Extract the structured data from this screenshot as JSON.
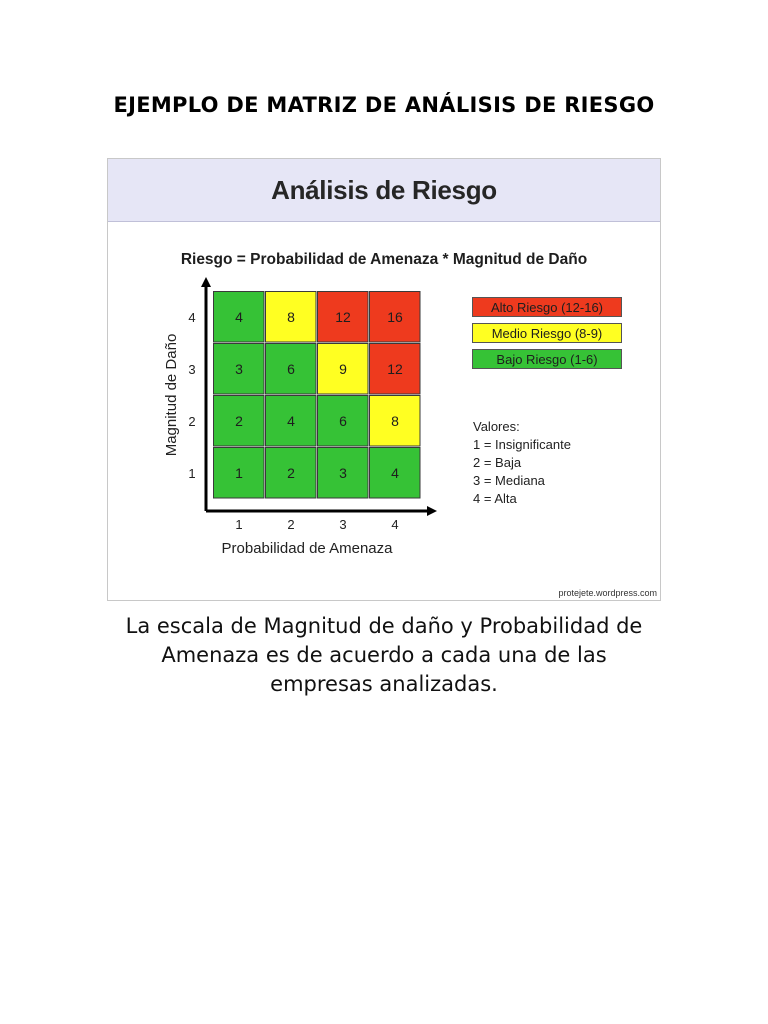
{
  "document": {
    "title": "EJEMPLO DE MATRIZ DE ANÁLISIS DE RIESGO",
    "caption": "La escala de Magnitud de daño y Probabilidad de Amenaza es de acuerdo a cada una de las empresas analizadas."
  },
  "figure": {
    "banner_title": "Análisis de Riesgo",
    "formula": "Riesgo = Probabilidad de Amenaza * Magnitud de Daño",
    "legend": [
      {
        "label": "Alto Riesgo (12-16)",
        "color": "#ee3a1e"
      },
      {
        "label": "Medio Riesgo (8-9)",
        "color": "#ffff22"
      },
      {
        "label": "Bajo Riesgo (1-6)",
        "color": "#36c236"
      }
    ],
    "valores": {
      "heading": "Valores:",
      "items": [
        "1 = Insignificante",
        "2 = Baja",
        "3 = Mediana",
        "4 = Alta"
      ]
    },
    "credit": "protejete.wordpress.com"
  },
  "chart_data": {
    "type": "heatmap",
    "xlabel": "Probabilidad de Amenaza",
    "ylabel": "Magnitud de Daño",
    "x_ticks": [
      "1",
      "2",
      "3",
      "4"
    ],
    "y_ticks": [
      "1",
      "2",
      "3",
      "4"
    ],
    "rows": [
      {
        "y": 4,
        "values": [
          4,
          8,
          12,
          16
        ],
        "levels": [
          "bajo",
          "medio",
          "alto",
          "alto"
        ]
      },
      {
        "y": 3,
        "values": [
          3,
          6,
          9,
          12
        ],
        "levels": [
          "bajo",
          "bajo",
          "medio",
          "alto"
        ]
      },
      {
        "y": 2,
        "values": [
          2,
          4,
          6,
          8
        ],
        "levels": [
          "bajo",
          "bajo",
          "bajo",
          "medio"
        ]
      },
      {
        "y": 1,
        "values": [
          1,
          2,
          3,
          4
        ],
        "levels": [
          "bajo",
          "bajo",
          "bajo",
          "bajo"
        ]
      }
    ],
    "level_colors": {
      "alto": "#ee3a1e",
      "medio": "#ffff22",
      "bajo": "#36c236"
    }
  }
}
